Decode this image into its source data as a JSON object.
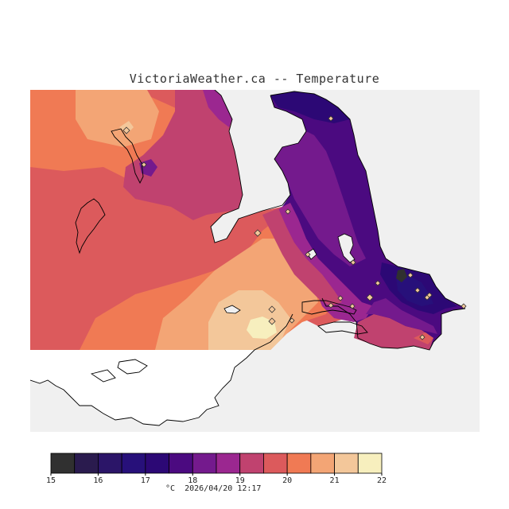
{
  "title": "VictoriaWeather.ca -- Temperature",
  "legend": {
    "unit": "°C",
    "min": 15,
    "max": 22,
    "tick_labels": [
      "15",
      "16",
      "17",
      "18",
      "19",
      "20",
      "21",
      "22"
    ],
    "colors": [
      "#303030",
      "#2a1b4e",
      "#2b1568",
      "#27107a",
      "#2c0875",
      "#4b0a80",
      "#741a8d",
      "#9b2790",
      "#c0426f",
      "#dc5a5c",
      "#f07a54",
      "#f3a575",
      "#f3c79a",
      "#f7efbe"
    ]
  },
  "timestamp": "2026/04/20 12:17",
  "map": {
    "water_color": "#f0f0f0",
    "coast_color": "#000000",
    "station_marker": "diamond"
  }
}
